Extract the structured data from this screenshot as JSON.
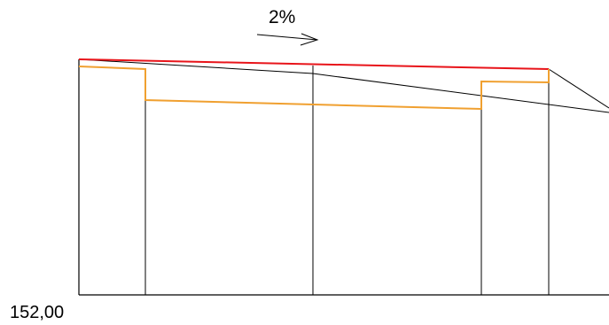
{
  "annotations": {
    "slope": "2%",
    "reference_level": "152,00"
  },
  "colors": {
    "background": "#ffffff",
    "outline": "#000000",
    "top_edge": "#e8141a",
    "inner_profile": "#f0a030"
  }
}
